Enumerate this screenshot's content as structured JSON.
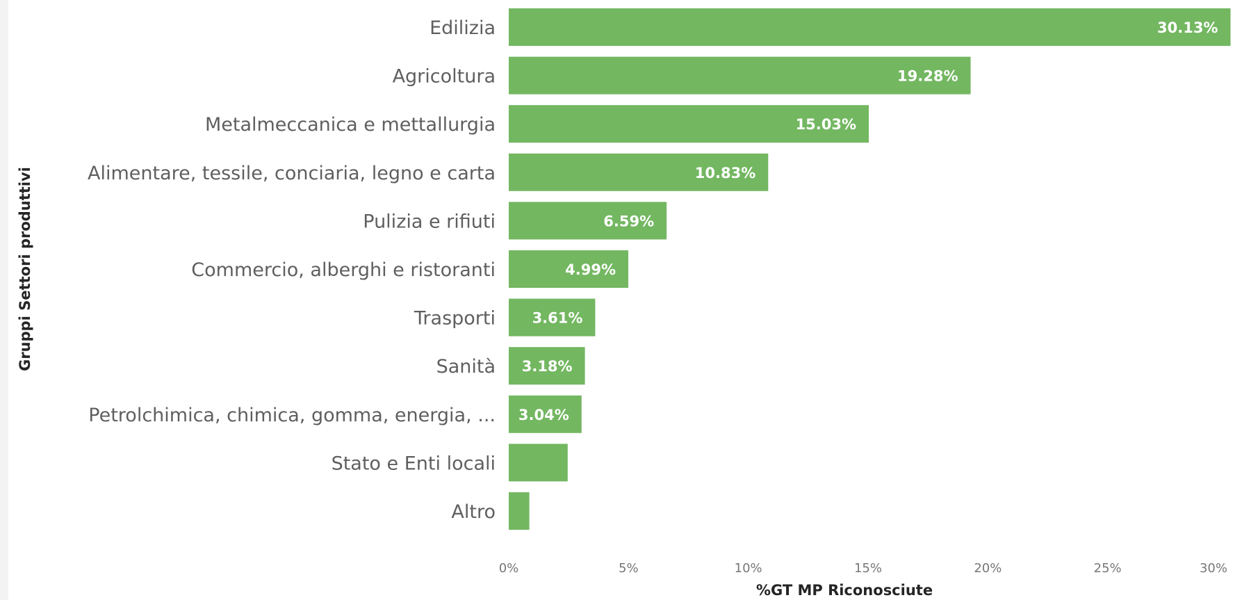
{
  "chart_data": {
    "type": "bar",
    "orientation": "horizontal",
    "xlabel": "%GT MP Riconosciute",
    "ylabel": "Gruppi Settori produttivi",
    "xlim": [
      0,
      30
    ],
    "xticks": [
      0,
      5,
      10,
      15,
      20,
      25,
      30
    ],
    "xtick_labels": [
      "0%",
      "5%",
      "10%",
      "15%",
      "20%",
      "25%",
      "30%"
    ],
    "grid": false,
    "bar_color": "#73b761",
    "categories": [
      "Edilizia",
      "Agricoltura",
      "Metalmeccanica e mettallurgia",
      "Alimentare, tessile, conciaria, legno e carta",
      "Pulizia e rifiuti",
      "Commercio, alberghi e ristoranti",
      "Trasporti",
      "Sanità",
      "Petrolchimica, chimica, gomma, energia, ...",
      "Stato e Enti locali",
      "Altro"
    ],
    "values": [
      30.13,
      19.28,
      15.03,
      10.83,
      6.59,
      4.99,
      3.61,
      3.18,
      3.04,
      2.46,
      0.86
    ],
    "data_labels": [
      "30.13%",
      "19.28%",
      "15.03%",
      "10.83%",
      "6.59%",
      "4.99%",
      "3.61%",
      "3.18%",
      "3.04%",
      "",
      ""
    ]
  }
}
